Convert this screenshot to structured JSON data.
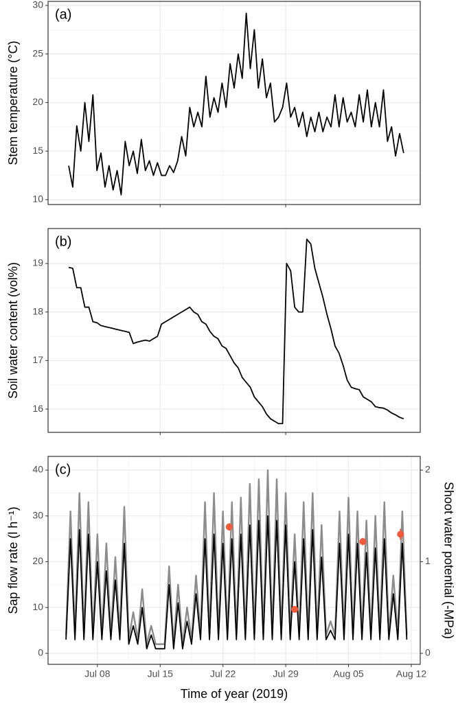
{
  "chart_data": [
    {
      "type": "line",
      "tag": "(a)",
      "ylabel": "Stem temperature (°C)",
      "xlim": [
        2.5,
        44
      ],
      "xticks": [
        15,
        29
      ],
      "ylim": [
        9.5,
        30.42
      ],
      "yticks": [
        10,
        15,
        20,
        25,
        30
      ],
      "grid": true,
      "x": [
        4.8,
        5.25,
        5.7,
        6.15,
        6.6,
        7.05,
        7.5,
        7.95,
        8.4,
        8.85,
        9.3,
        9.75,
        10.2,
        10.65,
        11.1,
        11.55,
        12,
        12.45,
        12.9,
        13.35,
        13.8,
        14.25,
        14.7,
        15.15,
        15.6,
        16.05,
        16.5,
        16.95,
        17.4,
        17.85,
        18.3,
        18.75,
        19.2,
        19.65,
        20.1,
        20.55,
        21,
        21.45,
        21.9,
        22.35,
        22.8,
        23.25,
        23.7,
        24.15,
        24.6,
        25.05,
        25.5,
        25.95,
        26.4,
        26.85,
        27.3,
        27.75,
        28.2,
        28.65,
        29.1,
        29.55,
        30,
        30.45,
        30.9,
        31.35,
        31.8,
        32.25,
        32.7,
        33.15,
        33.6,
        34.05,
        34.5,
        34.95,
        35.4,
        35.85,
        36.3,
        36.75,
        37.2,
        37.65,
        38.1,
        38.55,
        39,
        39.45,
        39.9,
        40.35,
        40.8,
        41.25,
        41.7,
        42.15
      ],
      "series": [
        {
          "color": "#000000",
          "values": [
            13.5,
            11.3,
            17.6,
            15.0,
            20.0,
            16.0,
            20.8,
            13.0,
            14.8,
            11.3,
            13.5,
            11.0,
            13.0,
            10.5,
            16.0,
            13.5,
            15.0,
            12.7,
            16.2,
            13.0,
            14.0,
            12.5,
            13.8,
            12.5,
            12.5,
            13.5,
            12.8,
            14.0,
            16.5,
            14.5,
            19.5,
            17.5,
            19.0,
            17.5,
            22.7,
            18.5,
            20.5,
            19.0,
            22.0,
            19.5,
            24.0,
            21.5,
            25.0,
            22.5,
            29.2,
            23.5,
            27.5,
            21.5,
            24.5,
            20.5,
            22.0,
            18.0,
            18.5,
            19.5,
            22.0,
            18.5,
            19.5,
            17.5,
            19.0,
            16.5,
            18.5,
            17.0,
            19.0,
            17.0,
            18.5,
            17.5,
            20.8,
            17.5,
            20.5,
            18.0,
            19.0,
            17.5,
            20.8,
            18.0,
            21.3,
            17.5,
            20.0,
            17.5,
            21.3,
            16.0,
            17.5,
            14.5,
            16.8,
            14.8
          ]
        }
      ]
    },
    {
      "type": "line",
      "tag": "(b)",
      "ylabel": "Soil water content (vol%)",
      "xlim": [
        2.5,
        44
      ],
      "xticks": [
        15,
        29
      ],
      "ylim": [
        15.52,
        19.72
      ],
      "yticks": [
        16,
        17,
        18,
        19
      ],
      "grid": true,
      "x": [
        4.8,
        5.25,
        5.7,
        6.15,
        6.6,
        7.05,
        7.5,
        7.95,
        8.4,
        8.85,
        9.3,
        9.75,
        10.2,
        10.65,
        11.1,
        11.55,
        12,
        12.45,
        12.9,
        13.35,
        13.8,
        14.25,
        14.7,
        15.15,
        15.6,
        16.05,
        16.5,
        16.95,
        17.4,
        17.85,
        18.3,
        18.75,
        19.2,
        19.65,
        20.1,
        20.55,
        21,
        21.45,
        21.9,
        22.35,
        22.8,
        23.25,
        23.7,
        24.15,
        24.6,
        25.05,
        25.5,
        25.95,
        26.4,
        26.85,
        27.3,
        27.75,
        28.2,
        28.65,
        29.1,
        29.55,
        30,
        30.45,
        30.9,
        31.35,
        31.8,
        32.25,
        32.7,
        33.15,
        33.6,
        34.05,
        34.5,
        34.95,
        35.4,
        35.85,
        36.3,
        36.75,
        37.2,
        37.65,
        38.1,
        38.55,
        39,
        39.45,
        39.9,
        40.35,
        40.8,
        41.25,
        41.7,
        42.15
      ],
      "series": [
        {
          "color": "#000000",
          "values": [
            18.92,
            18.9,
            18.5,
            18.5,
            18.1,
            18.1,
            17.8,
            17.78,
            17.72,
            17.7,
            17.68,
            17.66,
            17.64,
            17.62,
            17.6,
            17.58,
            17.35,
            17.38,
            17.4,
            17.42,
            17.4,
            17.45,
            17.5,
            17.75,
            17.8,
            17.85,
            17.9,
            17.95,
            18.0,
            18.05,
            18.1,
            18.0,
            17.95,
            17.8,
            17.75,
            17.6,
            17.5,
            17.45,
            17.3,
            17.25,
            17.1,
            16.95,
            16.85,
            16.65,
            16.55,
            16.45,
            16.25,
            16.15,
            16.05,
            15.9,
            15.8,
            15.75,
            15.7,
            15.7,
            19.0,
            18.85,
            18.1,
            18.0,
            18.0,
            19.5,
            19.4,
            18.9,
            18.6,
            18.3,
            17.95,
            17.65,
            17.3,
            17.15,
            16.9,
            16.6,
            16.45,
            16.42,
            16.4,
            16.25,
            16.2,
            16.15,
            16.05,
            16.03,
            16.02,
            15.98,
            15.92,
            15.88,
            15.83,
            15.8
          ]
        }
      ]
    },
    {
      "type": "line",
      "tag": "(c)",
      "ylabel": "Sap flow rate (l h⁻¹)",
      "y2label": "Shoot water potential (-MPa)",
      "xlabel": "Time of year (2019)",
      "xlim": [
        2.5,
        44
      ],
      "xticks": [
        {
          "value": 8,
          "label": "Jul 08"
        },
        {
          "value": 15,
          "label": "Jul 15"
        },
        {
          "value": 22,
          "label": "Jul 22"
        },
        {
          "value": 29,
          "label": "Jul 29"
        },
        {
          "value": 36,
          "label": "Aug 05"
        },
        {
          "value": 43,
          "label": "Aug 12"
        }
      ],
      "ylim": [
        -2.4,
        43.0
      ],
      "yticks": [
        0,
        10,
        20,
        30,
        40
      ],
      "y2lim": [
        -0.12,
        2.15
      ],
      "y2ticks": [
        0,
        1,
        2
      ],
      "grid": true,
      "x": [
        4.5,
        5,
        5.5,
        6,
        6.5,
        7,
        7.5,
        8,
        8.5,
        9,
        9.5,
        10,
        10.5,
        11,
        11.5,
        12,
        12.5,
        13,
        13.5,
        14,
        14.5,
        15,
        15.5,
        16,
        16.5,
        17,
        17.5,
        18,
        18.5,
        19,
        19.5,
        20,
        20.5,
        21,
        21.5,
        22,
        22.5,
        23,
        23.5,
        24,
        24.5,
        25,
        25.5,
        26,
        26.5,
        27,
        27.5,
        28,
        28.5,
        29,
        29.5,
        30,
        30.5,
        31,
        31.5,
        32,
        32.5,
        33,
        33.5,
        34,
        34.5,
        35,
        35.5,
        36,
        36.5,
        37,
        37.5,
        38,
        38.5,
        39,
        39.5,
        40,
        40.5,
        41,
        41.5,
        42,
        42.5
      ],
      "series": [
        {
          "color": "#8c8c8c",
          "values": [
            4,
            31,
            4,
            35,
            4,
            33,
            4,
            26,
            4,
            24,
            4,
            21,
            4,
            32,
            3,
            9,
            3,
            14,
            2,
            6,
            2,
            2,
            2,
            19,
            2,
            15,
            2,
            10,
            3,
            17,
            4,
            33,
            4,
            35,
            4,
            31,
            4,
            33,
            4,
            34,
            4,
            37,
            4,
            38,
            4,
            40,
            4,
            38,
            4,
            35,
            4,
            26,
            4,
            33,
            4,
            35,
            4,
            28,
            4,
            7,
            4,
            31,
            4,
            34,
            4,
            31,
            4,
            29,
            4,
            30,
            4,
            33,
            4,
            17,
            4,
            31,
            4
          ]
        },
        {
          "color": "#000000",
          "values": [
            3,
            25,
            3,
            27,
            3,
            26,
            3,
            20,
            3,
            18,
            3,
            16,
            3,
            24,
            2,
            6,
            2,
            10,
            1,
            4,
            1,
            1,
            1,
            15,
            1,
            11,
            1,
            7,
            2,
            13,
            3,
            25,
            3,
            26,
            3,
            24,
            3,
            25,
            3,
            26,
            3,
            28,
            3,
            29,
            3,
            30,
            3,
            29,
            3,
            28,
            3,
            20,
            3,
            25,
            3,
            27,
            3,
            21,
            3,
            5,
            3,
            24,
            3,
            26,
            3,
            24,
            3,
            22,
            3,
            23,
            3,
            25,
            3,
            13,
            3,
            24,
            3
          ]
        }
      ],
      "points": {
        "axis": "y2",
        "color": "#f05a3c",
        "x": [
          22.7,
          30.0,
          37.6,
          41.8
        ],
        "values": [
          1.38,
          0.48,
          1.22,
          1.3
        ],
        "errors": [
          0.04,
          0.03,
          0.04,
          0.06
        ]
      }
    }
  ]
}
